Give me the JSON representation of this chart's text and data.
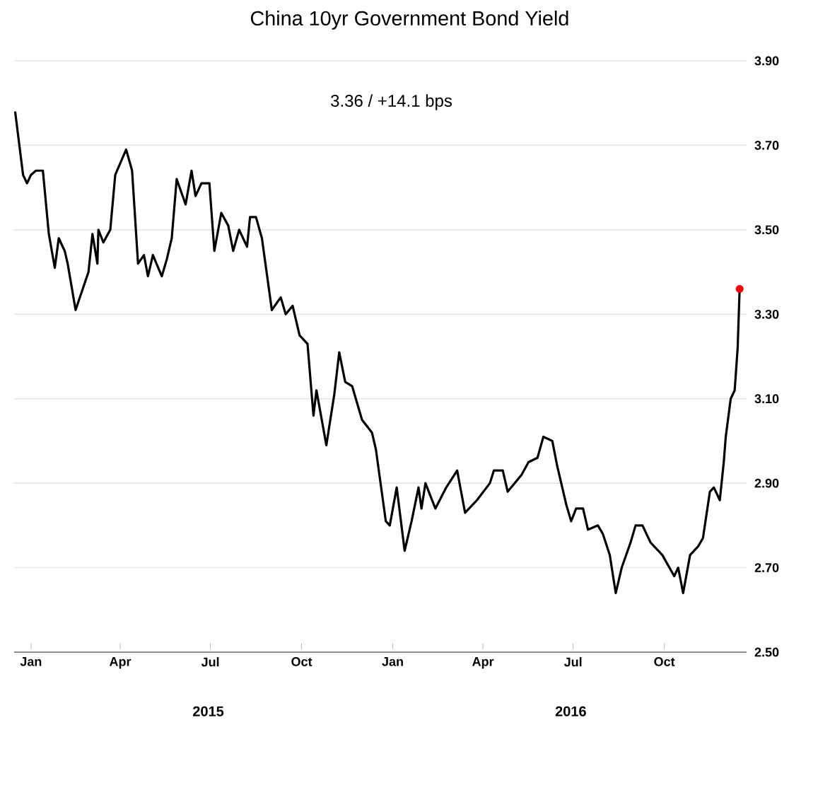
{
  "chart_data": {
    "type": "line",
    "title": "China 10yr Government Bond Yield",
    "subtitle": "3.36  /  +14.1 bps",
    "xlim": [
      "2014-12-15",
      "2016-12-23"
    ],
    "xticks": [
      {
        "value": "2015-01-01",
        "label": "Jan"
      },
      {
        "value": "2015-04-01",
        "label": "Apr"
      },
      {
        "value": "2015-07-01",
        "label": "Jul"
      },
      {
        "value": "2015-10-01",
        "label": "Oct"
      },
      {
        "value": "2016-01-01",
        "label": "Jan"
      },
      {
        "value": "2016-04-01",
        "label": "Apr"
      },
      {
        "value": "2016-07-01",
        "label": "Jul"
      },
      {
        "value": "2016-10-01",
        "label": "Oct"
      }
    ],
    "ylim": [
      2.5,
      3.9
    ],
    "yticks": [
      {
        "value": 2.5,
        "label": "2.50"
      },
      {
        "value": 2.7,
        "label": "2.70"
      },
      {
        "value": 2.9,
        "label": "2.90"
      },
      {
        "value": 3.1,
        "label": "3.10"
      },
      {
        "value": 3.3,
        "label": "3.30"
      },
      {
        "value": 3.5,
        "label": "3.50"
      },
      {
        "value": 3.7,
        "label": "3.70"
      },
      {
        "value": 3.9,
        "label": "3.90"
      }
    ],
    "grid": "y",
    "marker": "none",
    "line_style": "solid",
    "annotations": [
      "2015",
      "2016"
    ],
    "series": [
      {
        "color": "#000000",
        "x": [
          "2014-12-16",
          "2014-12-24",
          "2014-12-28",
          "2015-01-01",
          "2015-01-06",
          "2015-01-13",
          "2015-01-19",
          "2015-01-25",
          "2015-01-29",
          "2015-02-04",
          "2015-02-07",
          "2015-02-15",
          "2015-02-28",
          "2015-03-04",
          "2015-03-09",
          "2015-03-10",
          "2015-03-15",
          "2015-03-22",
          "2015-03-27",
          "2015-04-07",
          "2015-04-13",
          "2015-04-19",
          "2015-04-25",
          "2015-04-29",
          "2015-05-04",
          "2015-05-13",
          "2015-05-18",
          "2015-05-23",
          "2015-05-28",
          "2015-06-06",
          "2015-06-12",
          "2015-06-16",
          "2015-06-22",
          "2015-06-30",
          "2015-07-05",
          "2015-07-12",
          "2015-07-19",
          "2015-07-24",
          "2015-07-30",
          "2015-08-07",
          "2015-08-10",
          "2015-08-16",
          "2015-08-22",
          "2015-09-01",
          "2015-09-10",
          "2015-09-15",
          "2015-09-22",
          "2015-09-29",
          "2015-10-07",
          "2015-10-13",
          "2015-10-16",
          "2015-10-26",
          "2015-11-03",
          "2015-11-08",
          "2015-11-14",
          "2015-11-21",
          "2015-12-01",
          "2015-12-11",
          "2015-12-15",
          "2015-12-25",
          "2015-12-29",
          "2016-01-05",
          "2016-01-13",
          "2016-01-20",
          "2016-01-27",
          "2016-01-30",
          "2016-02-03",
          "2016-02-13",
          "2016-02-24",
          "2016-03-06",
          "2016-03-14",
          "2016-03-26",
          "2016-04-08",
          "2016-04-12",
          "2016-04-21",
          "2016-04-26",
          "2016-05-10",
          "2016-05-17",
          "2016-05-26",
          "2016-06-01",
          "2016-06-10",
          "2016-06-15",
          "2016-06-24",
          "2016-06-29",
          "2016-07-04",
          "2016-07-11",
          "2016-07-16",
          "2016-07-26",
          "2016-07-31",
          "2016-08-07",
          "2016-08-13",
          "2016-08-19",
          "2016-08-28",
          "2016-09-02",
          "2016-09-09",
          "2016-09-17",
          "2016-09-29",
          "2016-10-11",
          "2016-10-15",
          "2016-10-20",
          "2016-10-27",
          "2016-11-04",
          "2016-11-09",
          "2016-11-16",
          "2016-11-20",
          "2016-11-26",
          "2016-11-30",
          "2016-12-02",
          "2016-12-07",
          "2016-12-11",
          "2016-12-14",
          "2016-12-16"
        ],
        "values": [
          3.78,
          3.63,
          3.61,
          3.63,
          3.64,
          3.64,
          3.49,
          3.41,
          3.48,
          3.45,
          3.42,
          3.31,
          3.4,
          3.49,
          3.42,
          3.5,
          3.47,
          3.5,
          3.63,
          3.69,
          3.64,
          3.42,
          3.44,
          3.39,
          3.44,
          3.39,
          3.43,
          3.48,
          3.62,
          3.56,
          3.64,
          3.58,
          3.61,
          3.61,
          3.45,
          3.54,
          3.51,
          3.45,
          3.5,
          3.46,
          3.53,
          3.53,
          3.48,
          3.31,
          3.34,
          3.3,
          3.32,
          3.25,
          3.23,
          3.06,
          3.12,
          2.99,
          3.11,
          3.21,
          3.14,
          3.13,
          3.05,
          3.02,
          2.98,
          2.81,
          2.8,
          2.89,
          2.74,
          2.81,
          2.89,
          2.84,
          2.9,
          2.84,
          2.89,
          2.93,
          2.83,
          2.86,
          2.9,
          2.93,
          2.93,
          2.88,
          2.92,
          2.95,
          2.96,
          3.01,
          3.0,
          2.94,
          2.85,
          2.81,
          2.84,
          2.84,
          2.79,
          2.8,
          2.78,
          2.73,
          2.64,
          2.7,
          2.76,
          2.8,
          2.8,
          2.76,
          2.73,
          2.68,
          2.7,
          2.64,
          2.73,
          2.75,
          2.77,
          2.88,
          2.89,
          2.86,
          2.95,
          3.01,
          3.1,
          3.12,
          3.22,
          3.36
        ]
      },
      {
        "type": "scatter",
        "color": "#ff0000",
        "marker": "circle",
        "x": [
          "2016-12-16"
        ],
        "values": [
          3.36
        ]
      }
    ]
  }
}
